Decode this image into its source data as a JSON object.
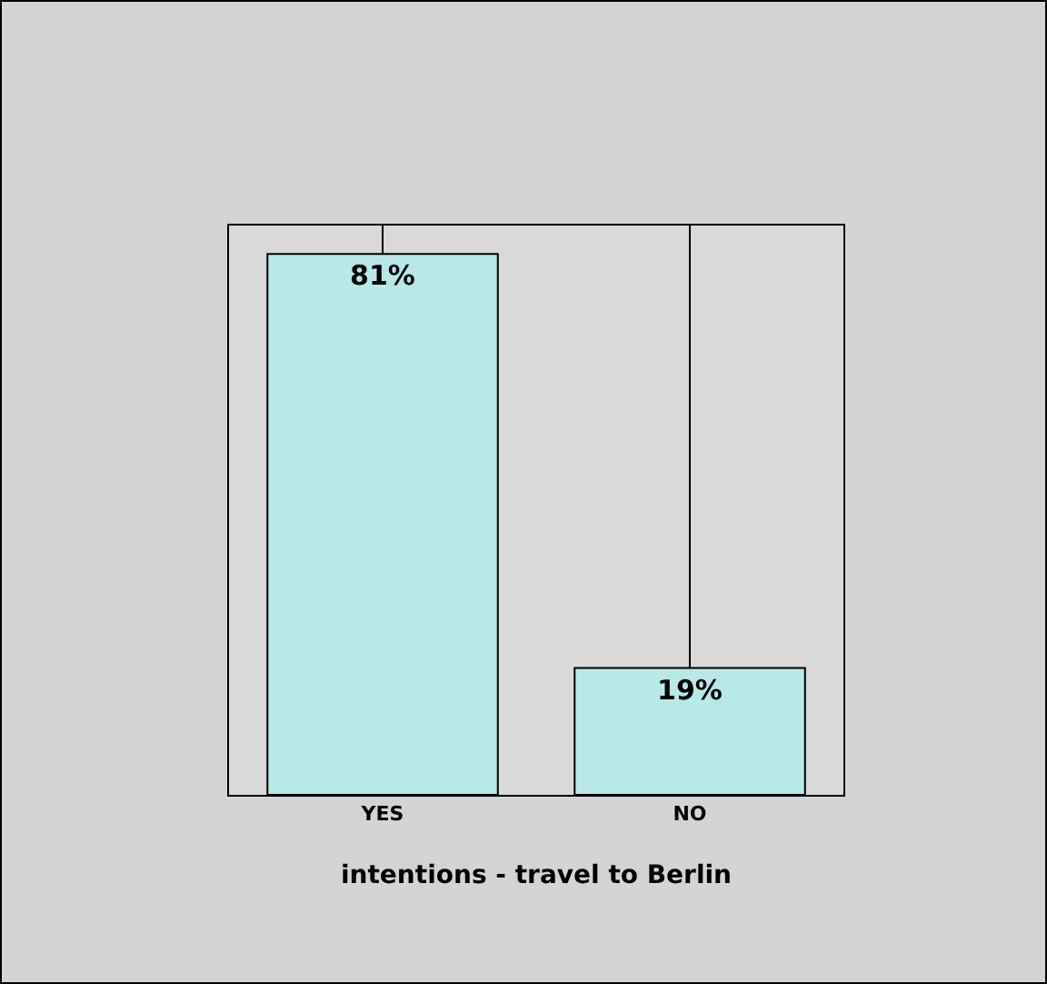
{
  "chart_data": {
    "type": "bar",
    "xlabel": "intentions - travel to Berlin",
    "categories": [
      "YES",
      "NO"
    ],
    "values": [
      81,
      19
    ],
    "value_labels": [
      "81%",
      "19%"
    ],
    "color": "#b8e8e8",
    "grid": "x",
    "legend": false
  }
}
